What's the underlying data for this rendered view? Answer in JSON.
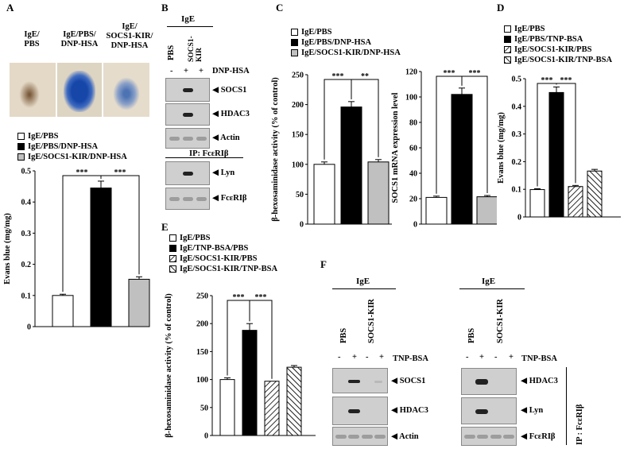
{
  "panels": {
    "A": {
      "label": "A",
      "photo_labels": [
        "IgE/\nPBS",
        "IgE/PBS/\nDNP-HSA",
        "IgE/\nSOCS1-KIR/\nDNP-HSA"
      ],
      "legend": [
        "IgE/PBS",
        "IgE/PBS/DNP-HSA",
        "IgE/SOCS1-KIR/DNP-HSA"
      ],
      "sig": [
        "***",
        "***"
      ]
    },
    "B": {
      "label": "B",
      "header": "IgE",
      "cols": [
        "PBS",
        "SOCS1-\nKIR"
      ],
      "treat": "DNP-HSA",
      "signs": [
        "-",
        "+",
        "+"
      ],
      "bands": [
        "SOCS1",
        "HDAC3",
        "Actin",
        "Lyn",
        "FcεRIβ"
      ],
      "ip": "IP: FcεRIβ"
    },
    "C": {
      "label": "C",
      "legend": [
        "IgE/PBS",
        "IgE/PBS/DNP-HSA",
        "IgE/SOCS1-KIR/DNP-HSA"
      ],
      "sig1": [
        "***",
        "**"
      ],
      "sig2": [
        "***",
        "***"
      ]
    },
    "D": {
      "label": "D",
      "legend": [
        "IgE/PBS",
        "IgE/PBS/TNP-BSA",
        "IgE/SOCS1-KIR/PBS",
        "IgE/SOCS1-KIR/TNP-BSA"
      ],
      "sig": [
        "***",
        "***"
      ]
    },
    "E": {
      "label": "E",
      "legend": [
        "IgE/PBS",
        "IgE/TNP-BSA/PBS",
        "IgE/SOCS1-KIR/PBS",
        "IgE/SOCS1-KIR/TNP-BSA"
      ],
      "sig": [
        "***",
        "***"
      ]
    },
    "F": {
      "label": "F",
      "header": "IgE",
      "cols": [
        "PBS",
        "SOCS1-KIR"
      ],
      "treat": "TNP-BSA",
      "signs": [
        "-",
        "+",
        "-",
        "+"
      ],
      "bands_left": [
        "SOCS1",
        "HDAC3",
        "Actin"
      ],
      "bands_right": [
        "HDAC3",
        "Lyn",
        "FcεRIβ"
      ],
      "ip": "IP : FcεRIβ"
    }
  },
  "chart_data": [
    {
      "id": "A",
      "type": "bar",
      "categories": [
        "IgE/PBS",
        "IgE/PBS/DNP-HSA",
        "IgE/SOCS1-KIR/DNP-HSA"
      ],
      "values": [
        0.1,
        0.445,
        0.152
      ],
      "errors": [
        0.004,
        0.022,
        0.008
      ],
      "ylabel": "Evans blue (mg/mg)",
      "ylim": [
        0,
        0.5
      ],
      "yticks": [
        "0",
        "0.1",
        "0.2",
        "0.3",
        "0.4",
        "0.5"
      ],
      "fills": [
        "#ffffff",
        "#000000",
        "#c0c0c0"
      ]
    },
    {
      "id": "C1",
      "type": "bar",
      "categories": [
        "IgE/PBS",
        "IgE/PBS/DNP-HSA",
        "IgE/SOCS1-KIR/DNP-HSA"
      ],
      "values": [
        100,
        196,
        104
      ],
      "errors": [
        4,
        9,
        4
      ],
      "ylabel": "β-hexosaminidase activity (% of control)",
      "ylim": [
        0,
        250
      ],
      "yticks": [
        "0",
        "50",
        "100",
        "150",
        "200",
        "250"
      ],
      "fills": [
        "#ffffff",
        "#000000",
        "#c0c0c0"
      ]
    },
    {
      "id": "C2",
      "type": "bar",
      "categories": [
        "IgE/PBS",
        "IgE/PBS/DNP-HSA",
        "IgE/SOCS1-KIR/DNP-HSA"
      ],
      "values": [
        21,
        102,
        21.5
      ],
      "errors": [
        1,
        5,
        1
      ],
      "ylabel": "SOCS1 mRNA expression level",
      "ylim": [
        0,
        120
      ],
      "yticks": [
        "0",
        "20",
        "40",
        "60",
        "80",
        "100",
        "120"
      ],
      "fills": [
        "#ffffff",
        "#000000",
        "#c0c0c0"
      ]
    },
    {
      "id": "D",
      "type": "bar",
      "categories": [
        "IgE/PBS",
        "IgE/PBS/TNP-BSA",
        "IgE/SOCS1-KIR/PBS",
        "IgE/SOCS1-KIR/TNP-BSA"
      ],
      "values": [
        0.099,
        0.45,
        0.11,
        0.166
      ],
      "errors": [
        0.003,
        0.02,
        0.004,
        0.006
      ],
      "ylabel": "Evans blue (mg/mg)",
      "ylim": [
        0,
        0.5
      ],
      "yticks": [
        "0",
        "0.1",
        "0.2",
        "0.3",
        "0.4",
        "0.5"
      ],
      "fills": [
        "#ffffff",
        "#000000",
        "hatch",
        "hatch2"
      ]
    },
    {
      "id": "E",
      "type": "bar",
      "categories": [
        "IgE/PBS",
        "IgE/TNP-BSA/PBS",
        "IgE/SOCS1-KIR/PBS",
        "IgE/SOCS1-KIR/TNP-BSA"
      ],
      "values": [
        100,
        188,
        97,
        122
      ],
      "errors": [
        3,
        12,
        0,
        3
      ],
      "ylabel": "β-hexosaminidase activity (% of control)",
      "ylim": [
        0,
        250
      ],
      "yticks": [
        "0",
        "50",
        "100",
        "150",
        "200",
        "250"
      ],
      "fills": [
        "#ffffff",
        "#000000",
        "hatch",
        "hatch2"
      ]
    }
  ]
}
